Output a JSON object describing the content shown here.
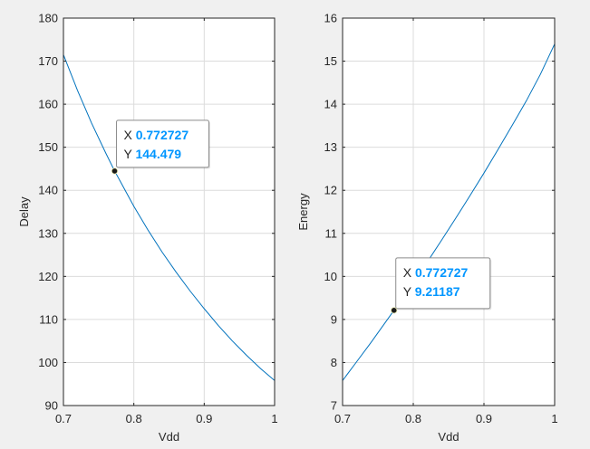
{
  "colors": {
    "figure_background": "#f0f0f0",
    "axes_background": "#ffffff",
    "axes_box": "#262626",
    "grid": "#dcdcdc",
    "line": "#0072bd",
    "datatip_value": "#0096ff",
    "marker": "#1a1a1a"
  },
  "chart_data": [
    {
      "type": "line",
      "title": "",
      "xlabel": "Vdd",
      "ylabel": "Delay",
      "xlim": [
        0.7,
        1
      ],
      "ylim": [
        90,
        180
      ],
      "xticks": [
        0.7,
        0.8,
        0.9,
        1
      ],
      "xtick_labels": [
        "0.7",
        "0.8",
        "0.9",
        "1"
      ],
      "yticks": [
        90,
        100,
        110,
        120,
        130,
        140,
        150,
        160,
        170,
        180
      ],
      "ytick_labels": [
        "90",
        "100",
        "110",
        "120",
        "130",
        "140",
        "150",
        "160",
        "170",
        "180"
      ],
      "grid": true,
      "series": [
        {
          "x": [
            0.7,
            0.72,
            0.74,
            0.76,
            0.772727,
            0.78,
            0.8,
            0.82,
            0.84,
            0.86,
            0.88,
            0.9,
            0.92,
            0.94,
            0.96,
            0.98,
            1.0
          ],
          "y": [
            171.5,
            163.2,
            155.6,
            148.7,
            144.479,
            142.3,
            136.3,
            130.8,
            125.7,
            121.0,
            116.6,
            112.5,
            108.6,
            105.0,
            101.7,
            98.6,
            95.8
          ]
        }
      ],
      "datatip": {
        "x_key": "X",
        "x_value": "0.772727",
        "y_key": "Y",
        "y_value": "144.479",
        "point": [
          0.772727,
          144.479
        ]
      }
    },
    {
      "type": "line",
      "title": "",
      "xlabel": "Vdd",
      "ylabel": "Energy",
      "xlim": [
        0.7,
        1
      ],
      "ylim": [
        7,
        16
      ],
      "xticks": [
        0.7,
        0.8,
        0.9,
        1
      ],
      "xtick_labels": [
        "0.7",
        "0.8",
        "0.9",
        "1"
      ],
      "yticks": [
        7,
        8,
        9,
        10,
        11,
        12,
        13,
        14,
        15,
        16
      ],
      "ytick_labels": [
        "7",
        "8",
        "9",
        "10",
        "11",
        "12",
        "13",
        "14",
        "15",
        "16"
      ],
      "grid": true,
      "series": [
        {
          "x": [
            0.7,
            0.72,
            0.74,
            0.76,
            0.772727,
            0.78,
            0.8,
            0.82,
            0.84,
            0.86,
            0.88,
            0.9,
            0.92,
            0.94,
            0.96,
            0.98,
            1.0
          ],
          "y": [
            7.58,
            8.02,
            8.46,
            8.92,
            9.21187,
            9.38,
            9.86,
            10.34,
            10.84,
            11.35,
            11.87,
            12.4,
            12.95,
            13.51,
            14.08,
            14.7,
            15.4
          ]
        }
      ],
      "datatip": {
        "x_key": "X",
        "x_value": "0.772727",
        "y_key": "Y",
        "y_value": "9.21187",
        "point": [
          0.772727,
          9.21187
        ]
      }
    }
  ]
}
